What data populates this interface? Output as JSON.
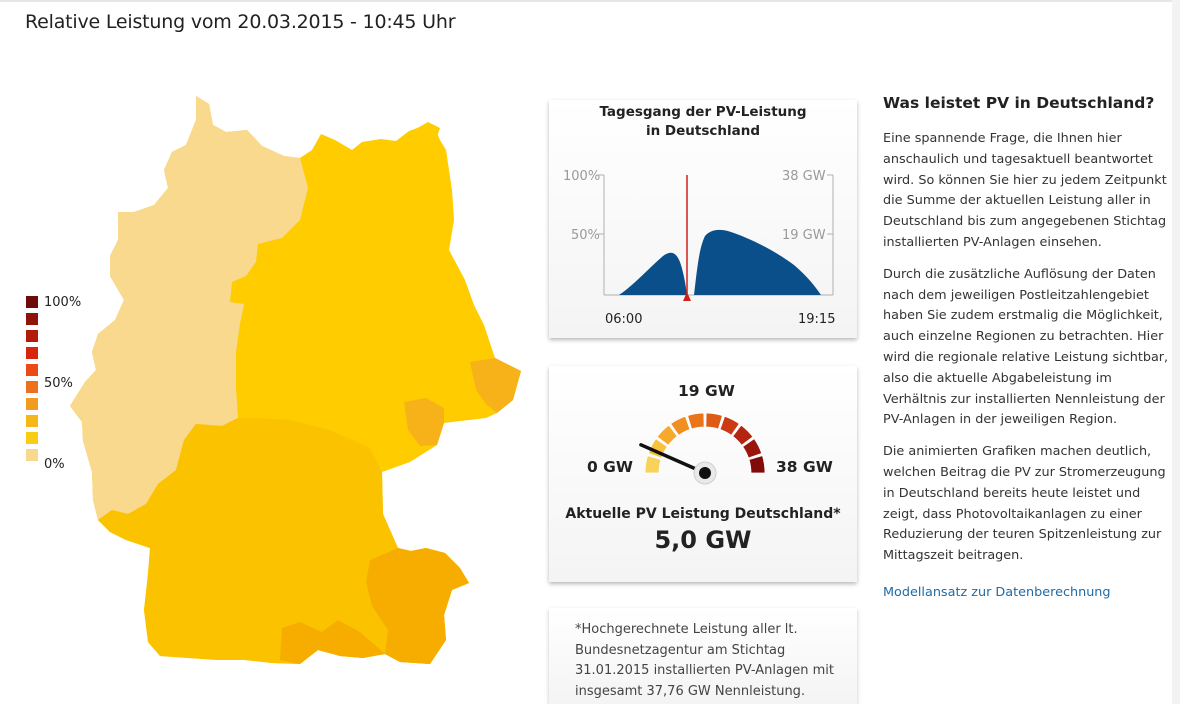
{
  "page": {
    "title": "Relative Leistung vom 20.03.2015 - 10:45 Uhr"
  },
  "legend": {
    "labels": [
      "100%",
      "50%",
      "0%"
    ],
    "colors": [
      "#6e0a0a",
      "#8e1308",
      "#b41c0a",
      "#d8260e",
      "#ea4a16",
      "#ee6f1c",
      "#f39a20",
      "#f7b71a",
      "#f8cd14",
      "#f6d98e"
    ]
  },
  "map": {
    "colors": {
      "low": "#f8d98e",
      "mid": "#ffcc00",
      "high": "#f9b300",
      "highest": "#f5a000"
    }
  },
  "daily_chart": {
    "title_line1": "Tagesgang der PV-Leistung",
    "title_line2": "in Deutschland",
    "y_left_top": "100%",
    "y_left_mid": "50%",
    "y_right_top": "38 GW",
    "y_right_mid": "19 GW",
    "x_start": "06:00",
    "x_end": "19:15",
    "fill_color": "#0b4f8a",
    "marker_color": "#d0201a"
  },
  "gauge": {
    "max_label_top": "19 GW",
    "min_label": "0 GW",
    "max_label": "38 GW",
    "caption": "Aktuelle PV Leistung Deutschland*",
    "value": "5,0 GW",
    "current_fraction": 0.132
  },
  "footnote": {
    "text": "*Hochgerechnete Leistung aller lt. Bundesnetzagentur am Stichtag 31.01.2015 installierten PV-Anlagen mit insgesamt 37,76 GW Nennleistung."
  },
  "sidebar": {
    "heading": "Was leistet PV in Deutschland?",
    "paragraphs": [
      "Eine spannende Frage, die Ihnen hier anschaulich und tagesaktuell beantwortet wird. So können Sie hier zu jedem Zeitpunkt die Summe der aktuellen Leistung aller in Deutschland bis zum angegebenen Stichtag installierten PV-Anlagen einsehen.",
      "Durch die zusätzliche Auflösung der Daten nach dem jeweiligen Postleitzahlengebiet haben Sie zudem erstmalig die Möglichkeit, auch einzelne Regionen zu betrachten. Hier wird die regionale relative Leistung sichtbar, also die aktuelle Abgabeleistung im Verhältnis zur installierten Nennleistung der PV-Anlagen in der jeweiligen Region.",
      "Die animierten Grafiken machen deutlich, welchen Beitrag die PV zur Stromerzeugung in Deutschland bereits heute leistet und zeigt, dass Photovoltaikanlagen zu einer Reduzierung der teuren Spitzenleistung zur Mittagszeit beitragen."
    ],
    "link": "Modellansatz zur Datenberechnung"
  }
}
